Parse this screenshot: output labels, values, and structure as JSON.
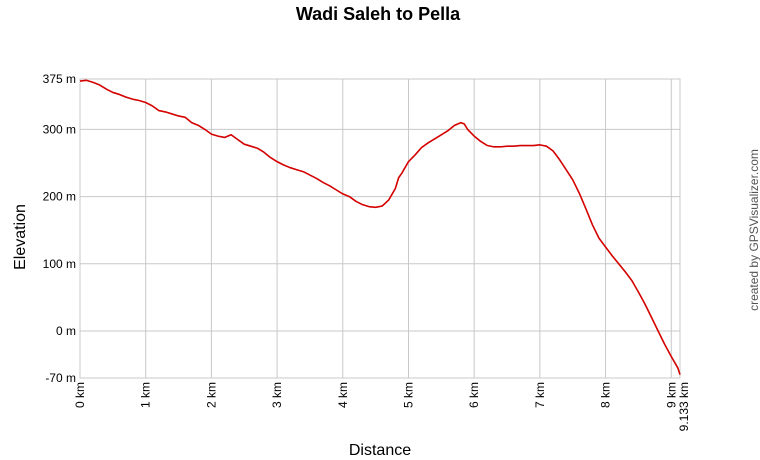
{
  "chart_data": {
    "type": "line",
    "title": "Wadi Saleh to Pella",
    "xlabel": "Distance",
    "ylabel": "Elevation",
    "credit": "created by GPSVisualizer.com",
    "xlim": [
      0,
      9.133
    ],
    "ylim": [
      -70,
      375
    ],
    "x_ticks": [
      {
        "value": 0,
        "label": "0 km"
      },
      {
        "value": 1,
        "label": "1 km"
      },
      {
        "value": 2,
        "label": "2 km"
      },
      {
        "value": 3,
        "label": "3 km"
      },
      {
        "value": 4,
        "label": "4 km"
      },
      {
        "value": 5,
        "label": "5 km"
      },
      {
        "value": 6,
        "label": "6 km"
      },
      {
        "value": 7,
        "label": "7 km"
      },
      {
        "value": 8,
        "label": "8 km"
      },
      {
        "value": 9,
        "label": "9 km"
      },
      {
        "value": 9.133,
        "label": "9.133 km"
      }
    ],
    "y_ticks": [
      {
        "value": 375,
        "label": "375 m"
      },
      {
        "value": 300,
        "label": "300 m"
      },
      {
        "value": 200,
        "label": "200 m"
      },
      {
        "value": 100,
        "label": "100 m"
      },
      {
        "value": 0,
        "label": "0 m"
      },
      {
        "value": -70,
        "label": "-70 m"
      }
    ],
    "grid": true,
    "color": "#d40000",
    "series": [
      {
        "x": [
          0,
          0.1,
          0.2,
          0.3,
          0.4,
          0.5,
          0.6,
          0.7,
          0.8,
          0.9,
          1.0,
          1.1,
          1.2,
          1.3,
          1.4,
          1.5,
          1.6,
          1.7,
          1.8,
          1.9,
          2.0,
          2.1,
          2.2,
          2.3,
          2.4,
          2.5,
          2.6,
          2.7,
          2.8,
          2.9,
          3.0,
          3.1,
          3.2,
          3.3,
          3.4,
          3.5,
          3.6,
          3.7,
          3.8,
          3.9,
          4.0,
          4.1,
          4.2,
          4.3,
          4.4,
          4.5,
          4.6,
          4.7,
          4.8,
          4.85,
          4.9,
          5.0,
          5.1,
          5.2,
          5.3,
          5.4,
          5.5,
          5.6,
          5.7,
          5.8,
          5.85,
          5.9,
          6.0,
          6.1,
          6.2,
          6.3,
          6.4,
          6.5,
          6.6,
          6.7,
          6.8,
          6.9,
          7.0,
          7.1,
          7.2,
          7.3,
          7.4,
          7.5,
          7.6,
          7.7,
          7.8,
          7.9,
          8.0,
          8.1,
          8.2,
          8.3,
          8.4,
          8.5,
          8.6,
          8.7,
          8.8,
          8.9,
          9.0,
          9.1,
          9.133
        ],
        "y": [
          372,
          373,
          370,
          366,
          360,
          355,
          352,
          348,
          345,
          343,
          340,
          335,
          328,
          326,
          323,
          320,
          318,
          310,
          306,
          300,
          293,
          290,
          288,
          292,
          285,
          278,
          275,
          272,
          266,
          258,
          252,
          247,
          243,
          240,
          237,
          232,
          227,
          221,
          216,
          210,
          204,
          200,
          193,
          188,
          185,
          184,
          186,
          195,
          212,
          228,
          235,
          252,
          262,
          273,
          280,
          286,
          292,
          298,
          306,
          310,
          308,
          300,
          290,
          282,
          276,
          274,
          274,
          275,
          275,
          276,
          276,
          276,
          277,
          275,
          268,
          255,
          240,
          225,
          205,
          182,
          158,
          138,
          125,
          112,
          100,
          88,
          75,
          58,
          40,
          20,
          0,
          -20,
          -38,
          -55,
          -65
        ]
      }
    ]
  }
}
